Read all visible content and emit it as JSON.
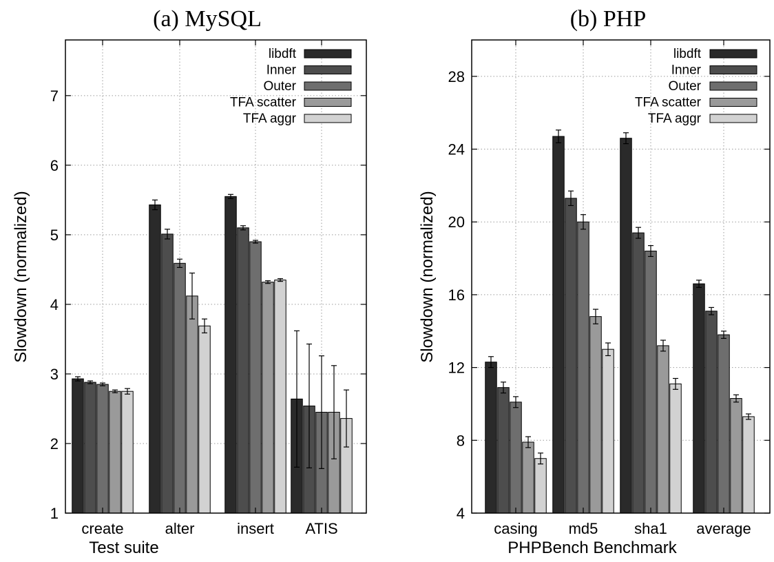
{
  "series_styles": [
    {
      "name": "libdft",
      "fill": "#2a2a2a"
    },
    {
      "name": "Inner",
      "fill": "#4d4d4d"
    },
    {
      "name": "Outer",
      "fill": "#6e6e6e"
    },
    {
      "name": "TFA scatter",
      "fill": "#9a9a9a"
    },
    {
      "name": "TFA aggr",
      "fill": "#d2d2d2"
    }
  ],
  "chart_data": [
    {
      "type": "bar",
      "title": "(a) MySQL",
      "xlabel": "Test suite",
      "ylabel": "Slowdown (normalized)",
      "ylim": [
        1,
        7.8
      ],
      "yticks": [
        1,
        2,
        3,
        4,
        5,
        6,
        7
      ],
      "grid": true,
      "legend_position": "top-right",
      "categories": [
        "create",
        "alter",
        "insert",
        "ATIS"
      ],
      "series": [
        {
          "name": "libdft",
          "values": [
            2.93,
            5.43,
            5.55,
            2.64
          ],
          "errors": [
            0.03,
            0.07,
            0.03,
            0.98
          ]
        },
        {
          "name": "Inner",
          "values": [
            2.88,
            5.01,
            5.1,
            2.54
          ],
          "errors": [
            0.02,
            0.07,
            0.03,
            0.89
          ]
        },
        {
          "name": "Outer",
          "values": [
            2.85,
            4.59,
            4.9,
            2.45
          ],
          "errors": [
            0.02,
            0.06,
            0.02,
            0.81
          ]
        },
        {
          "name": "TFA scatter",
          "values": [
            2.75,
            4.12,
            4.32,
            2.45
          ],
          "errors": [
            0.02,
            0.33,
            0.02,
            0.67
          ]
        },
        {
          "name": "TFA aggr",
          "values": [
            2.75,
            3.69,
            4.35,
            2.36
          ],
          "errors": [
            0.04,
            0.1,
            0.02,
            0.41
          ]
        }
      ]
    },
    {
      "type": "bar",
      "title": "(b) PHP",
      "xlabel": "PHPBench Benchmark",
      "ylabel": "Slowdown (normalized)",
      "ylim": [
        4,
        30
      ],
      "yticks": [
        4,
        8,
        12,
        16,
        20,
        24,
        28
      ],
      "grid": true,
      "legend_position": "top-right",
      "categories": [
        "casing",
        "md5",
        "sha1",
        "average"
      ],
      "series": [
        {
          "name": "libdft",
          "values": [
            12.3,
            24.7,
            24.6,
            16.6
          ],
          "errors": [
            0.3,
            0.35,
            0.3,
            0.2
          ]
        },
        {
          "name": "Inner",
          "values": [
            10.9,
            21.3,
            19.4,
            15.1
          ],
          "errors": [
            0.3,
            0.4,
            0.3,
            0.2
          ]
        },
        {
          "name": "Outer",
          "values": [
            10.1,
            20.0,
            18.4,
            13.8
          ],
          "errors": [
            0.3,
            0.4,
            0.3,
            0.2
          ]
        },
        {
          "name": "TFA scatter",
          "values": [
            7.9,
            14.8,
            13.2,
            10.3
          ],
          "errors": [
            0.3,
            0.4,
            0.3,
            0.2
          ]
        },
        {
          "name": "TFA aggr",
          "values": [
            7.0,
            13.0,
            11.1,
            9.3
          ],
          "errors": [
            0.3,
            0.35,
            0.3,
            0.15
          ]
        }
      ]
    }
  ]
}
